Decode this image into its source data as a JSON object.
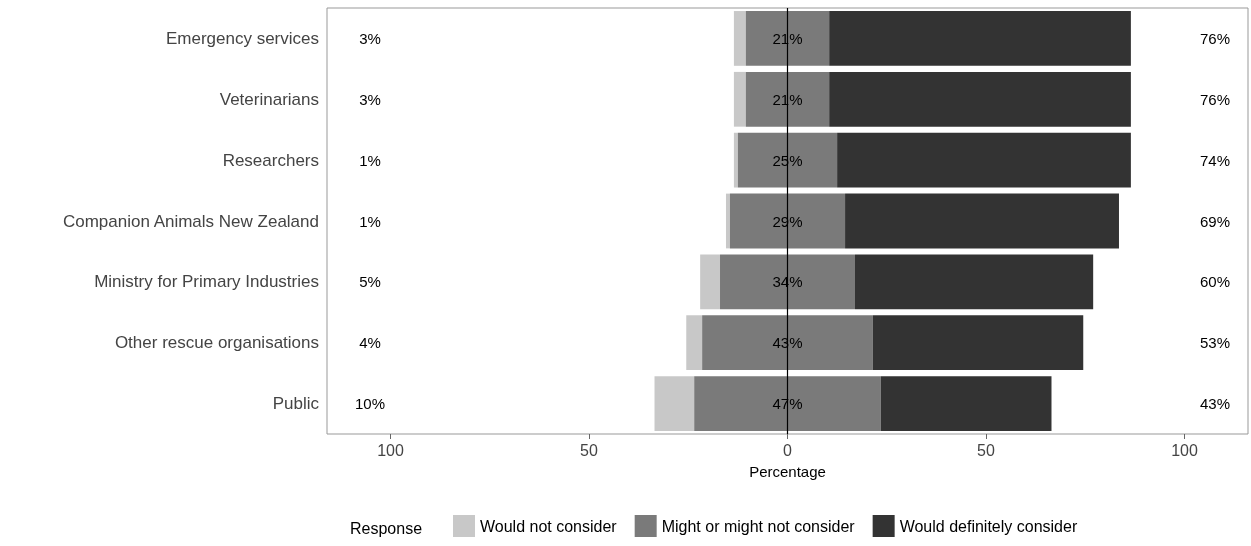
{
  "chart_data": {
    "type": "bar",
    "orientation": "horizontal",
    "xlabel": "Percentage",
    "legend_title": "Response",
    "legend": "bottom",
    "grid": false,
    "categories": [
      "Emergency services",
      "Veterinarians",
      "Researchers",
      "Companion Animals New Zealand",
      "Ministry for Primary Industries",
      "Other rescue organisations",
      "Public"
    ],
    "xlim": [
      -116,
      116
    ],
    "xticks": [
      {
        "value": -100,
        "label": "100"
      },
      {
        "value": -50,
        "label": "50"
      },
      0,
      50,
      100
    ],
    "ref_lines": [
      {
        "axis": "x",
        "value": 0,
        "color": "#000000"
      }
    ],
    "series": [
      {
        "name": "Would not consider",
        "color": "#c8c8c8",
        "values": [
          3,
          3,
          1,
          1,
          5,
          4,
          10
        ],
        "base": [
          -13.5,
          -13.5,
          -13.5,
          -15.5,
          -22,
          -25.5,
          -33.5
        ],
        "value_labels": [
          "3%",
          "3%",
          "1%",
          "1%",
          "5%",
          "4%",
          "10%"
        ]
      },
      {
        "name": "Might or might not consider",
        "color": "#7a7a7a",
        "values": [
          21,
          21,
          25,
          29,
          34,
          43,
          47
        ],
        "base": [
          -10.5,
          -10.5,
          -12.5,
          -14.5,
          -17,
          -21.5,
          -23.5
        ],
        "value_labels": [
          "21%",
          "21%",
          "25%",
          "29%",
          "34%",
          "43%",
          "47%"
        ]
      },
      {
        "name": "Would definitely consider",
        "color": "#333333",
        "values": [
          76,
          76,
          74,
          69,
          60,
          53,
          43
        ],
        "base": [
          10.5,
          10.5,
          12.5,
          14.5,
          17,
          21.5,
          23.5
        ],
        "value_labels": [
          "76%",
          "76%",
          "74%",
          "69%",
          "60%",
          "53%",
          "43%"
        ]
      }
    ]
  }
}
